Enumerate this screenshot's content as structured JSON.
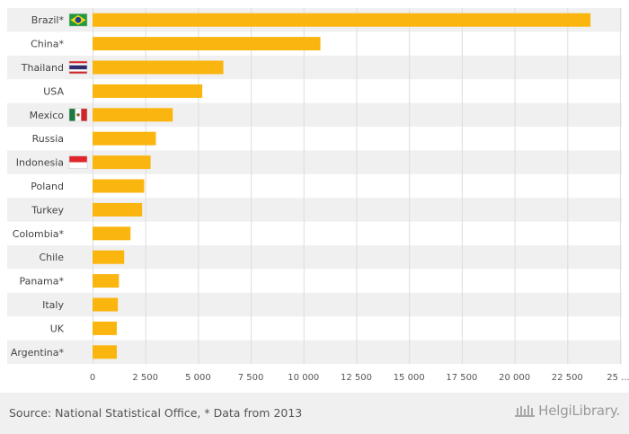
{
  "chart_data": {
    "type": "bar",
    "orientation": "horizontal",
    "categories": [
      "Brazil*",
      "China*",
      "Thailand",
      "USA",
      "Mexico",
      "Russia",
      "Indonesia",
      "Poland",
      "Turkey",
      "Colombia*",
      "Chile",
      "Panama*",
      "Italy",
      "UK",
      "Argentina*"
    ],
    "flags": {
      "Brazil*": "brazil-flag-icon",
      "Thailand": "thailand-flag-icon",
      "Mexico": "mexico-flag-icon",
      "Indonesia": "indonesia-flag-icon"
    },
    "values": [
      23600,
      10800,
      6200,
      5200,
      3800,
      3000,
      2750,
      2450,
      2350,
      1800,
      1500,
      1250,
      1200,
      1150,
      1150
    ],
    "xlim": [
      0,
      25000
    ],
    "xticks": [
      0,
      2500,
      5000,
      7500,
      10000,
      12500,
      15000,
      17500,
      20000,
      22500
    ],
    "xtick_labels": [
      "0",
      "2 500",
      "5 000",
      "7 500",
      "10 000",
      "12 500",
      "15 000",
      "17 500",
      "20 000",
      "22 500"
    ],
    "xtick_last_label": "25 ...",
    "grid": "vertical",
    "bar_color": "#fbb50f",
    "stripe_color": "#f0f0f0",
    "grid_color": "#dddddd"
  },
  "footer": {
    "source": "Source: National Statistical Office, * Data from 2013",
    "brand": "HelgiLibrary."
  }
}
